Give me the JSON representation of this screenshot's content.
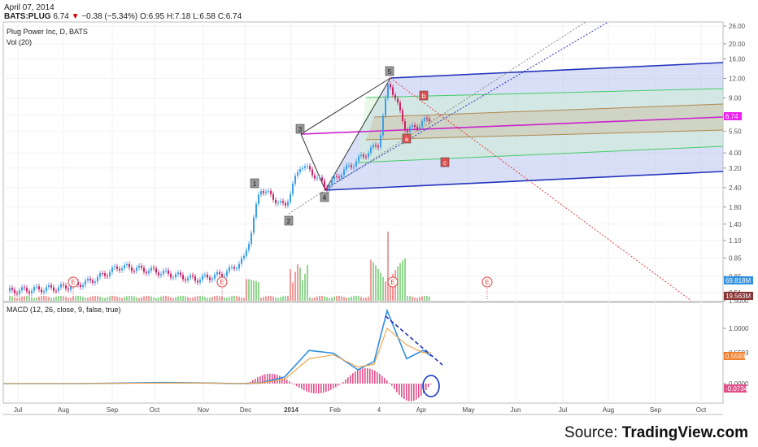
{
  "header": {
    "date": "April 07, 2014",
    "symbol": "BATS:PLUG",
    "price": "6.74",
    "change": "−0.38 (−5.34%)",
    "open": "O:6.95",
    "high": "H:7.18",
    "low": "L:6.58",
    "close": "C:6.74",
    "chart_title": "Plug Power Inc, D, BATS",
    "vol_label": "Vol (20)",
    "macd_label": "MACD (12, 26, close, 9, false, true)"
  },
  "source": {
    "prefix": "Source: ",
    "brand": "TradingView.com"
  },
  "colors": {
    "macd": "#2f8fe0",
    "signal": "#f0a040",
    "hist": "#e0508a",
    "channel": "#2233bb",
    "median": "#cc22cc",
    "green": "#44cc66",
    "brown": "#b08850",
    "price_badge": "#ee22ee",
    "vol_badge": "#2f8fe0",
    "vol2_badge": "#883333"
  },
  "chart_data": [
    {
      "type": "candlestick",
      "title": "Plug Power Inc, D, BATS",
      "x_ticks": [
        "Jul",
        "Aug",
        "Sep",
        "Oct",
        "Nov",
        "Dec",
        "2014",
        "Feb",
        "4",
        "Apr",
        "May",
        "Jun",
        "Jul",
        "Aug",
        "Sep",
        "Oct"
      ],
      "y_ticks": [
        "26.00",
        "20.00",
        "16.00",
        "12.00",
        "9.00",
        "7.00",
        "5.50",
        "4.00",
        "3.20",
        "2.40",
        "1.80",
        "1.40",
        "1.10",
        "0.85",
        "0.65",
        "0.51"
      ],
      "y_scale": "log",
      "last_price_badge": "6.74",
      "volume_badges": [
        "69.818M",
        "19.563M"
      ],
      "wave_labels": [
        "1",
        "2",
        "3",
        "4",
        "5",
        "a",
        "b",
        "c"
      ],
      "event_markers": [
        "E",
        "E",
        "E",
        "E"
      ],
      "price_path": [
        [
          "Jul",
          0.52
        ],
        [
          "Aug",
          0.55
        ],
        [
          "mid-Aug",
          0.6
        ],
        [
          "Sep",
          0.75
        ],
        [
          "Oct",
          0.7
        ],
        [
          "Nov",
          0.62
        ],
        [
          "mid-Nov",
          0.66
        ],
        [
          "late-Nov",
          0.72
        ],
        [
          "Dec",
          0.84
        ],
        [
          "early-Dec",
          1.2
        ],
        [
          "mid-Dec",
          2.4
        ],
        [
          "late-Dec",
          1.8
        ],
        [
          "2014",
          3.4
        ],
        [
          "mid-Jan",
          2.8
        ],
        [
          "Feb",
          2.4
        ],
        [
          "mid-Feb",
          3.0
        ],
        [
          "4",
          4.6
        ],
        [
          "peak",
          11.72
        ],
        [
          "mid-Mar",
          5.5
        ],
        [
          "Apr",
          6.74
        ]
      ]
    },
    {
      "type": "line",
      "title": "MACD (12, 26, close, 9, false, true)",
      "y_ticks": [
        "1.5000",
        "1.0000",
        "0.5593",
        "0.0000"
      ],
      "badges": [
        "0.5593",
        "-0.0734"
      ],
      "series": [
        {
          "name": "MACD",
          "values": [
            0.0,
            0.0,
            0.02,
            0.01,
            0.0,
            0.01,
            0.12,
            0.6,
            0.55,
            0.25,
            0.4,
            1.32,
            0.45,
            0.6,
            0.5
          ]
        },
        {
          "name": "Signal",
          "values": [
            0.0,
            0.0,
            0.01,
            0.01,
            0.0,
            0.01,
            0.08,
            0.45,
            0.52,
            0.3,
            0.35,
            1.0,
            0.7,
            0.56,
            0.56
          ]
        }
      ]
    }
  ]
}
